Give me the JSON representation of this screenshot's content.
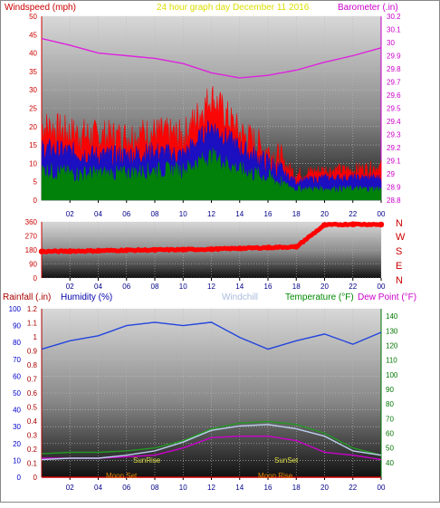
{
  "header": {
    "windspeed_title": "Windspeed (mph)",
    "center_title": "24 hour graph day   December 11 2016",
    "barometer_title": "Barometer (.in)"
  },
  "middle": {
    "compass_labels": [
      "N",
      "W",
      "S",
      "E",
      "N"
    ]
  },
  "bottom_header": {
    "rainfall": "Rainfall (.in)",
    "humidity": "Humidity (%)",
    "windchill": "Windchill",
    "temperature": "Temperature (°F)",
    "dewpoint": "Dew Point (°F)"
  },
  "events": {
    "sunrise": "SunRise",
    "sunset": "SunSet",
    "moonset": "Moon Set",
    "moonrise": "Moon Rise"
  },
  "colors": {
    "wind_gust": "#ff0000",
    "wind_avg": "#1010cc",
    "wind_low": "#008800",
    "barometer": "#dd22dd",
    "direction": "#ff0000",
    "humidity": "#2244dd",
    "temperature": "#229922",
    "dewpoint": "#cc00cc",
    "windchill": "#bbd0ee",
    "sun_label": "#dddd44",
    "moon_label": "#dd8800"
  },
  "chart_data": [
    {
      "type": "line",
      "name": "wind-barometer",
      "x_ticks": [
        "02",
        "04",
        "06",
        "08",
        "10",
        "12",
        "14",
        "16",
        "18",
        "20",
        "22",
        "00"
      ],
      "ylim_left": [
        0,
        50
      ],
      "yticks_left": [
        0,
        5,
        10,
        15,
        20,
        25,
        30,
        35,
        40,
        45,
        50
      ],
      "ylim_right": [
        28.8,
        30.2
      ],
      "yticks_right": [
        "28.8",
        "28.9",
        "29",
        "29.1",
        "29.2",
        "29.3",
        "29.4",
        "29.5",
        "29.6",
        "29.7",
        "29.8",
        "29.9",
        "30",
        "30.1",
        "30.2"
      ],
      "x_hours": [
        0,
        2,
        4,
        6,
        8,
        10,
        12,
        14,
        16,
        18,
        20,
        22,
        24
      ],
      "series": [
        {
          "name": "Windspeed",
          "axis": "left",
          "values": [
            20,
            18,
            17,
            17,
            18,
            17,
            28,
            18,
            13,
            7,
            8,
            8,
            9
          ]
        },
        {
          "name": "Windspeed",
          "axis": "left",
          "values": [
            14,
            13,
            12,
            12,
            13,
            12,
            20,
            14,
            10,
            5,
            6,
            6,
            6
          ]
        },
        {
          "name": "Windspeed",
          "axis": "left",
          "values": [
            8,
            7,
            7,
            7,
            8,
            8,
            12,
            8,
            6,
            3,
            3,
            3,
            3
          ]
        },
        {
          "name": "Barometer",
          "axis": "right",
          "values": [
            30.03,
            29.98,
            29.92,
            29.9,
            29.88,
            29.84,
            29.77,
            29.73,
            29.75,
            29.79,
            29.85,
            29.9,
            29.96
          ]
        }
      ]
    },
    {
      "type": "scatter",
      "name": "wind-direction",
      "x_ticks": [
        "02",
        "04",
        "06",
        "08",
        "10",
        "12",
        "14",
        "16",
        "18",
        "20",
        "22",
        "00"
      ],
      "ylim": [
        0,
        360
      ],
      "yticks": [
        0,
        90,
        180,
        270,
        360
      ],
      "x_hours": [
        0,
        2,
        4,
        6,
        8,
        10,
        12,
        14,
        16,
        18,
        20,
        22,
        24
      ],
      "series": [
        {
          "name": "Direction",
          "values": [
            170,
            172,
            175,
            178,
            180,
            182,
            185,
            190,
            195,
            200,
            340,
            345,
            343
          ]
        }
      ]
    },
    {
      "type": "line",
      "name": "humidity-temperature",
      "x_ticks": [
        "02",
        "04",
        "06",
        "08",
        "10",
        "12",
        "14",
        "16",
        "18",
        "20",
        "22",
        "00"
      ],
      "ylim_rain": [
        0,
        1.2
      ],
      "yticks_rain": [
        "0",
        "0.1",
        "0.2",
        "0.3",
        "0.4",
        "0.5",
        "0.6",
        "0.7",
        "0.8",
        "0.9",
        "1",
        "1.1",
        "1.2"
      ],
      "ylim_humidity": [
        0,
        100
      ],
      "yticks_humidity": [
        0,
        10,
        20,
        30,
        40,
        50,
        60,
        70,
        80,
        90,
        100
      ],
      "ylim_temp": [
        30,
        145
      ],
      "yticks_temp": [
        40,
        50,
        60,
        70,
        80,
        90,
        100,
        110,
        120,
        130,
        140
      ],
      "x_hours": [
        0,
        2,
        4,
        6,
        8,
        10,
        12,
        14,
        16,
        18,
        20,
        22,
        24
      ],
      "series": [
        {
          "name": "Humidity",
          "axis": "humidity",
          "values": [
            76,
            81,
            84,
            90,
            92,
            90,
            92,
            83,
            76,
            81,
            85,
            79,
            86
          ]
        },
        {
          "name": "Temperature",
          "axis": "temp",
          "values": [
            46,
            47,
            47,
            48,
            50,
            55,
            63,
            67,
            68,
            66,
            60,
            50,
            45
          ]
        },
        {
          "name": "Dew Point",
          "axis": "temp",
          "values": [
            43,
            43,
            43,
            44,
            45,
            50,
            57,
            58,
            58,
            55,
            47,
            45,
            42
          ]
        },
        {
          "name": "Windchill",
          "axis": "temp",
          "values": [
            42,
            43,
            43,
            45,
            48,
            54,
            62,
            65,
            66,
            63,
            58,
            48,
            45
          ]
        },
        {
          "name": "Rainfall",
          "axis": "rain",
          "values": [
            0,
            0,
            0,
            0,
            0,
            0,
            0,
            0,
            0,
            0,
            0,
            0,
            0
          ]
        }
      ]
    }
  ]
}
